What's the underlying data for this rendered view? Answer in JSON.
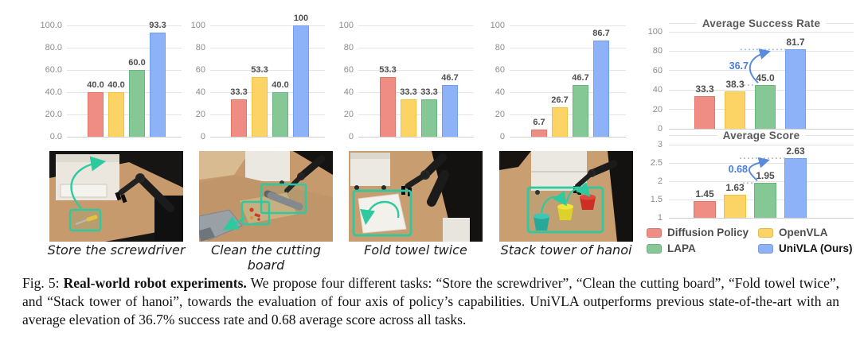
{
  "figure": {
    "fig_label": "Fig. 5:",
    "caption_bold": "Real-world robot experiments.",
    "caption_body": "We propose four different tasks: “Store the screwdriver”, “Clean the cutting board”, “Fold towel twice”, and “Stack tower of hanoi”, towards the evaluation of four axis of policy’s capabilities. UniVLA outperforms previous state-of-the-art with an average elevation of 36.7% success rate and 0.68 average score across all tasks."
  },
  "palette": {
    "bar_colors": [
      "#ef8c83",
      "#fbd465",
      "#85c795",
      "#8eb2f7"
    ],
    "bar_borders": [
      "#e57368",
      "#f0c23f",
      "#68b57e",
      "#6f9df2"
    ],
    "annotation_blue": "#4a7cdf",
    "highlight_teal": "#2fc9a0",
    "gridline": "#e4e4e4",
    "tick_text": "#8c8c8c",
    "label_text": "#4f4f4f"
  },
  "series": [
    "Diffusion Policy",
    "OpenVLA",
    "LAPA",
    "UniVLA (Ours)"
  ],
  "chart_data": [
    {
      "type": "bar",
      "name": "store-the-screwdriver",
      "categories": [
        "Diffusion Policy",
        "OpenVLA",
        "LAPA",
        "UniVLA (Ours)"
      ],
      "values": [
        40.0,
        40.0,
        60.0,
        93.3
      ],
      "value_labels": [
        "40.0",
        "40.0",
        "60.0",
        "93.3"
      ],
      "yticks": [
        "100.0",
        "80.0",
        "60.0",
        "40.0",
        "20.0",
        "0.0"
      ],
      "ymin": 0,
      "ymax": 100,
      "grid": true,
      "legend_position": "none"
    },
    {
      "type": "bar",
      "name": "clean-the-cutting-board",
      "categories": [
        "Diffusion Policy",
        "OpenVLA",
        "LAPA",
        "UniVLA (Ours)"
      ],
      "values": [
        33.3,
        53.3,
        40.0,
        100
      ],
      "value_labels": [
        "33.3",
        "53.3",
        "40.0",
        "100"
      ],
      "yticks": [
        "100",
        "80",
        "60",
        "40",
        "20",
        "0"
      ],
      "ymin": 0,
      "ymax": 100,
      "grid": true,
      "legend_position": "none"
    },
    {
      "type": "bar",
      "name": "fold-towel-twice",
      "categories": [
        "Diffusion Policy",
        "OpenVLA",
        "LAPA",
        "UniVLA (Ours)"
      ],
      "values": [
        53.3,
        33.3,
        33.3,
        46.7
      ],
      "value_labels": [
        "53.3",
        "33.3",
        "33.3",
        "46.7"
      ],
      "yticks": [
        "100",
        "80",
        "60",
        "40",
        "20",
        "0"
      ],
      "ymin": 0,
      "ymax": 100,
      "grid": true,
      "legend_position": "none"
    },
    {
      "type": "bar",
      "name": "stack-tower-of-hanoi",
      "categories": [
        "Diffusion Policy",
        "OpenVLA",
        "LAPA",
        "UniVLA (Ours)"
      ],
      "values": [
        6.7,
        26.7,
        46.7,
        86.7
      ],
      "value_labels": [
        "6.7",
        "26.7",
        "46.7",
        "86.7"
      ],
      "yticks": [
        "100",
        "80",
        "60",
        "40",
        "20",
        "0"
      ],
      "ymin": 0,
      "ymax": 100,
      "grid": true,
      "legend_position": "none"
    },
    {
      "type": "bar",
      "name": "average-success-rate",
      "title": "Average Success Rate",
      "categories": [
        "Diffusion Policy",
        "OpenVLA",
        "LAPA",
        "UniVLA (Ours)"
      ],
      "values": [
        33.3,
        38.3,
        45.0,
        81.7
      ],
      "value_labels": [
        "33.3",
        "38.3",
        "45.0",
        "81.7"
      ],
      "yticks": [
        "100",
        "80",
        "60",
        "40",
        "20",
        "0"
      ],
      "ymin": 0,
      "ymax": 100,
      "grid": true,
      "legend_position": "none",
      "annotation": {
        "text": "36.7",
        "from_series": "LAPA",
        "to_series": "UniVLA (Ours)"
      }
    },
    {
      "type": "bar",
      "name": "average-score",
      "title": "Average Score",
      "categories": [
        "Diffusion Policy",
        "OpenVLA",
        "LAPA",
        "UniVLA (Ours)"
      ],
      "values": [
        1.45,
        1.63,
        1.95,
        2.63
      ],
      "value_labels": [
        "1.45",
        "1.63",
        "1.95",
        "2.63"
      ],
      "yticks": [
        "3",
        "2.5",
        "2",
        "1.5",
        "1"
      ],
      "ymin": 1,
      "ymax": 3,
      "grid": true,
      "legend_position": "none",
      "annotation": {
        "text": "0.68",
        "from_series": "LAPA",
        "to_series": "UniVLA (Ours)"
      }
    }
  ],
  "legend": {
    "items": [
      {
        "label": "Diffusion Policy",
        "color": "#ef8c83"
      },
      {
        "label": "OpenVLA",
        "color": "#fbd465"
      },
      {
        "label": "LAPA",
        "color": "#85c795"
      },
      {
        "label": "UniVLA (Ours)",
        "color": "#8eb2f7",
        "emphasis": true
      }
    ]
  },
  "photos": [
    {
      "caption": "Store the screwdriver"
    },
    {
      "caption": "Clean the cutting board"
    },
    {
      "caption": "Fold towel twice"
    },
    {
      "caption": "Stack tower of hanoi"
    }
  ]
}
